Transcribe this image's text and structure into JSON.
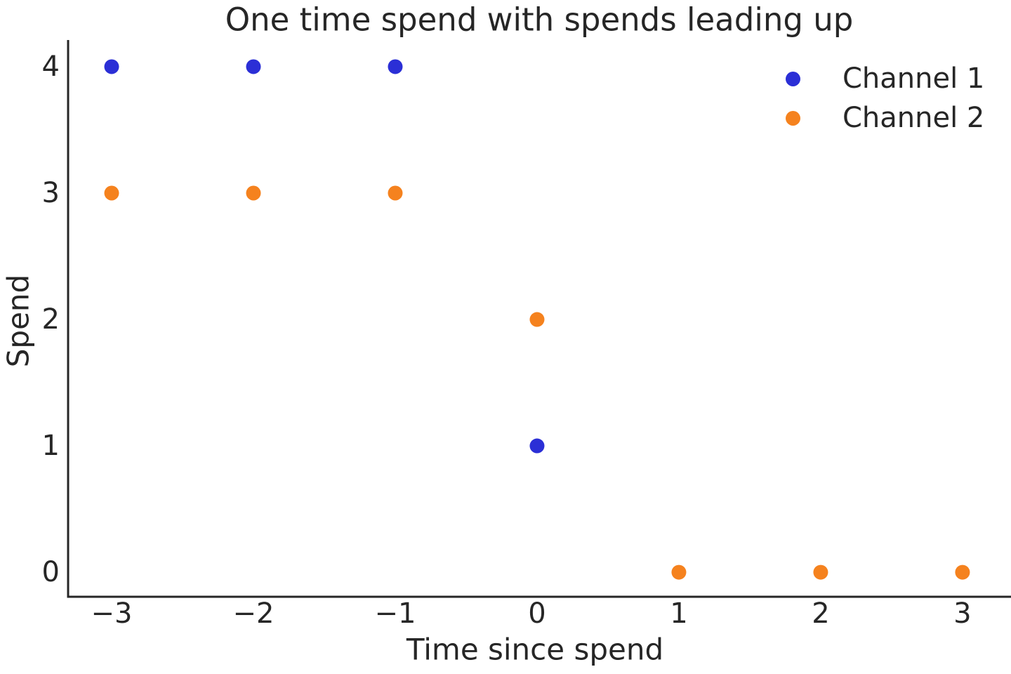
{
  "figure": {
    "background": "#ffffff",
    "text_color": "#262626",
    "spine_color": "#262626"
  },
  "chart_data": {
    "type": "scatter",
    "title": "One time spend with spends leading up",
    "xlabel": "Time since spend",
    "ylabel": "Spend",
    "xlim": [
      -3.307,
      3.342
    ],
    "ylim": [
      -0.194,
      4.211
    ],
    "x_ticks": [
      -3,
      -2,
      -1,
      0,
      1,
      2,
      3
    ],
    "x_tick_labels": [
      "−3",
      "−2",
      "−1",
      "0",
      "1",
      "2",
      "3"
    ],
    "y_ticks": [
      0,
      1,
      2,
      3,
      4
    ],
    "y_tick_labels": [
      "0",
      "1",
      "2",
      "3",
      "4"
    ],
    "grid": false,
    "legend_position": "upper right",
    "marker_radius": 10.5,
    "series": [
      {
        "name": "Channel 1",
        "color": "#2b2fd6",
        "points": [
          [
            -3,
            4
          ],
          [
            -2,
            4
          ],
          [
            -1,
            4
          ],
          [
            0,
            1
          ]
        ]
      },
      {
        "name": "Channel 2",
        "color": "#f5821e",
        "points": [
          [
            -3,
            3
          ],
          [
            -2,
            3
          ],
          [
            -1,
            3
          ],
          [
            0,
            2
          ],
          [
            1,
            0
          ],
          [
            2,
            0
          ],
          [
            3,
            0
          ]
        ]
      }
    ]
  }
}
